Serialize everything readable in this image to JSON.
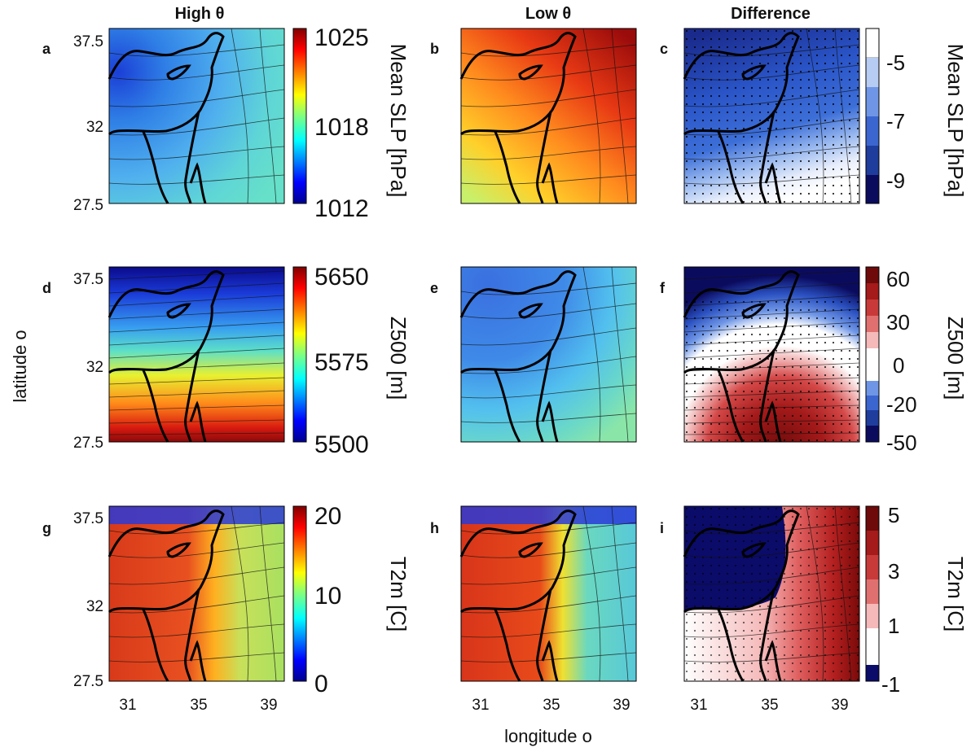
{
  "columns": {
    "high": "High θ",
    "low": "Low θ",
    "diff": "Difference"
  },
  "panel_letters": [
    "a",
    "b",
    "c",
    "d",
    "e",
    "f",
    "g",
    "h",
    "i"
  ],
  "axis_labels": {
    "y": "latitude o",
    "x": "longitude o"
  },
  "lat_ticks": [
    "37.5",
    "32",
    "27.5"
  ],
  "lon_ticks": [
    "31",
    "35",
    "39"
  ],
  "colorbars": {
    "slp": {
      "label": "Mean SLP [hPa]",
      "ticks": [
        "1025",
        "1018",
        "1012"
      ]
    },
    "slp_diff": {
      "label": "Mean SLP [hPa]",
      "ticks": [
        "-5",
        "-7",
        "-9"
      ]
    },
    "z500": {
      "label": "Z500 [m]",
      "ticks": [
        "5650",
        "5575",
        "5500"
      ]
    },
    "z500_diff": {
      "label": "Z500 [m]",
      "ticks": [
        "60",
        "30",
        "0",
        "-20",
        "-50"
      ]
    },
    "t2m": {
      "label": "T2m [C]",
      "ticks": [
        "20",
        "10",
        "0"
      ]
    },
    "t2m_diff": {
      "label": "T2m [C]",
      "ticks": [
        "5",
        "3",
        "1",
        "-1"
      ]
    }
  },
  "colors": {
    "jet": [
      "#00008f",
      "#0000ff",
      "#0080ff",
      "#00ffff",
      "#80ff80",
      "#ffff00",
      "#ff8000",
      "#ff0000",
      "#800000"
    ],
    "diverging": [
      "#0b0b5e",
      "#1f3d9c",
      "#3b66d0",
      "#6f96e6",
      "#b7ccf3",
      "#ffffff",
      "#f5b9b9",
      "#e07070",
      "#c83a3a",
      "#a51a1a",
      "#6e0a0a"
    ]
  }
}
